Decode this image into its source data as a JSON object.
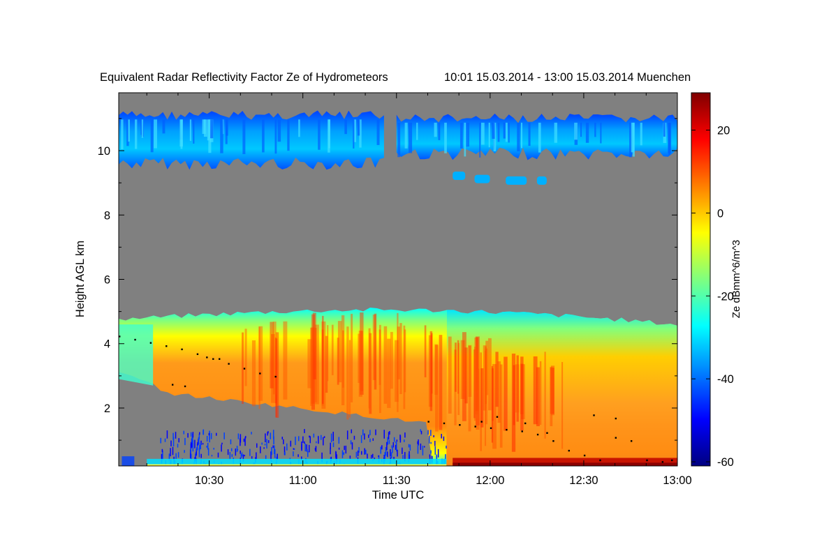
{
  "chart_data": {
    "type": "heatmap",
    "title": "Equivalent Radar Reflectivity Factor Ze of Hydrometeors",
    "time_range_label": "10:01 15.03.2014 - 13:00 15.03.2014 Muenchen",
    "xlabel": "Time UTC",
    "ylabel": "Height AGL km",
    "colorbar_label": "Ze dBmm^6/m^3",
    "x_ticks": [
      "10:30",
      "11:00",
      "11:30",
      "12:00",
      "12:30",
      "13:00"
    ],
    "x_tick_minutes": [
      630,
      660,
      690,
      720,
      750,
      780
    ],
    "xlim_minutes": [
      601,
      780
    ],
    "y_ticks": [
      "2",
      "4",
      "6",
      "8",
      "10"
    ],
    "y_tick_values": [
      2,
      4,
      6,
      8,
      10
    ],
    "ylim": [
      0.2,
      11.8
    ],
    "colorbar_ticks": [
      "20",
      "0",
      "-20",
      "-40",
      "-60"
    ],
    "colorbar_tick_values": [
      20,
      0,
      -20,
      -40,
      -60
    ],
    "colorbar_range": [
      -61,
      29
    ],
    "colors": {
      "no_signal": "#808080",
      "colormap": [
        "#00007f",
        "#0000ff",
        "#007fff",
        "#00ffff",
        "#7fff7f",
        "#ffff00",
        "#ff7f00",
        "#ff0000",
        "#7f0000"
      ]
    },
    "layers": [
      {
        "name": "upper-cloud-layer-a",
        "t_start": 601,
        "t_end": 686,
        "z_bottom": 9.6,
        "z_top": 11.1,
        "ze_core": -32
      },
      {
        "name": "upper-cloud-layer-b",
        "t_start": 690,
        "t_end": 780,
        "z_bottom": 9.9,
        "z_top": 11.0,
        "ze_core": -30
      },
      {
        "name": "lower-precipitation-layer",
        "t_start": 601,
        "t_end": 780,
        "z_bottom": 0.2,
        "z_top": 4.8,
        "ze_core": 8
      }
    ],
    "cloud_base_dots": [
      [
        601,
        4.25
      ],
      [
        606,
        4.15
      ],
      [
        611,
        4.05
      ],
      [
        616,
        3.95
      ],
      [
        621,
        3.85
      ],
      [
        626,
        3.7
      ],
      [
        631,
        3.55
      ],
      [
        636,
        3.4
      ],
      [
        641,
        3.25
      ],
      [
        646,
        3.1
      ],
      [
        651,
        3.0
      ],
      [
        622,
        2.7
      ],
      [
        618,
        2.75
      ],
      [
        629,
        3.6
      ],
      [
        633,
        3.55
      ],
      [
        700,
        1.6
      ],
      [
        705,
        1.55
      ],
      [
        710,
        1.5
      ],
      [
        715,
        1.45
      ],
      [
        720,
        1.4
      ],
      [
        725,
        1.35
      ],
      [
        730,
        1.3
      ],
      [
        735,
        1.2
      ],
      [
        740,
        1.0
      ],
      [
        745,
        0.7
      ],
      [
        750,
        0.55
      ],
      [
        755,
        0.4
      ],
      [
        760,
        1.1
      ],
      [
        765,
        1.0
      ],
      [
        770,
        0.4
      ],
      [
        775,
        0.35
      ],
      [
        778,
        0.4
      ],
      [
        717,
        1.6
      ],
      [
        722,
        1.75
      ],
      [
        731,
        1.55
      ],
      [
        738,
        1.25
      ],
      [
        753,
        1.8
      ],
      [
        760,
        1.7
      ]
    ]
  }
}
